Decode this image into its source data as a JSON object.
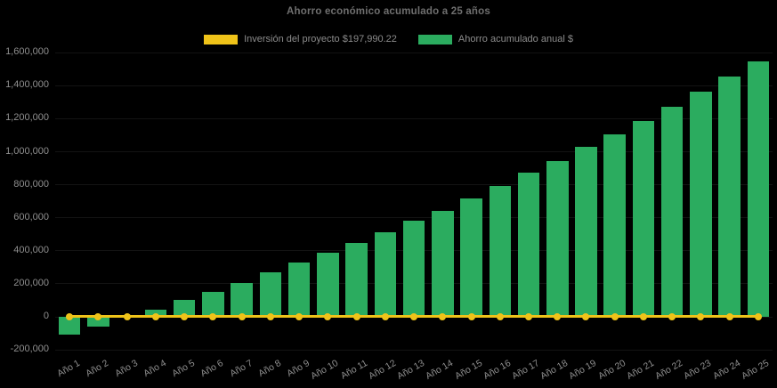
{
  "window": {
    "background": "#000000"
  },
  "title": "Ahorro económico acumulado a 25 años",
  "legend": {
    "position": "top",
    "items": [
      {
        "label": "Inversión del proyecto $197,990.22",
        "color": "#EFC319"
      },
      {
        "label": "Ahorro acumulado anual $",
        "color": "#2BAC5F"
      }
    ]
  },
  "chart_data": {
    "type": "bar",
    "title": "Ahorro económico acumulado a 25 años",
    "categories": [
      "Año 1",
      "Año 2",
      "Año 3",
      "Año 4",
      "Año 5",
      "Año 6",
      "Año 7",
      "Año 8",
      "Año 9",
      "Año 10",
      "Año 11",
      "Año 12",
      "Año 13",
      "Año 14",
      "Año 15",
      "Año 16",
      "Año 17",
      "Año 18",
      "Año 19",
      "Año 20",
      "Año 21",
      "Año 22",
      "Año 23",
      "Año 24",
      "Año 25"
    ],
    "series": [
      {
        "name": "Inversión del proyecto $197,990.22",
        "type": "line",
        "color": "#EFC319",
        "marker": "circle",
        "values": [
          0,
          0,
          0,
          0,
          0,
          0,
          0,
          0,
          0,
          0,
          0,
          0,
          0,
          0,
          0,
          0,
          0,
          0,
          0,
          0,
          0,
          0,
          0,
          0,
          0
        ]
      },
      {
        "name": "Ahorro acumulado anual $",
        "type": "bar",
        "color": "#2BAC5F",
        "values": [
          -110000,
          -64000,
          4000,
          42000,
          100000,
          151000,
          204000,
          268000,
          328000,
          388000,
          444000,
          508000,
          578000,
          641000,
          712000,
          789000,
          869000,
          941000,
          1026000,
          1102000,
          1185000,
          1272000,
          1361000,
          1455000,
          1547000
        ]
      }
    ],
    "ylim": [
      -200000,
      1600000
    ],
    "ytick_step": 200000,
    "yticks": [
      {
        "value": 1600000,
        "label": "1,600,000"
      },
      {
        "value": 1400000,
        "label": "1,400,000"
      },
      {
        "value": 1200000,
        "label": "1,200,000"
      },
      {
        "value": 1000000,
        "label": "1,000,000"
      },
      {
        "value": 800000,
        "label": "800,000"
      },
      {
        "value": 600000,
        "label": "600,000"
      },
      {
        "value": 400000,
        "label": "400,000"
      },
      {
        "value": 200000,
        "label": "200,000"
      },
      {
        "value": 0,
        "label": "0"
      },
      {
        "value": -200000,
        "label": "-200,000"
      }
    ],
    "x_label_rotation_deg": -30,
    "legend_position": "top",
    "grid_visible": false
  }
}
